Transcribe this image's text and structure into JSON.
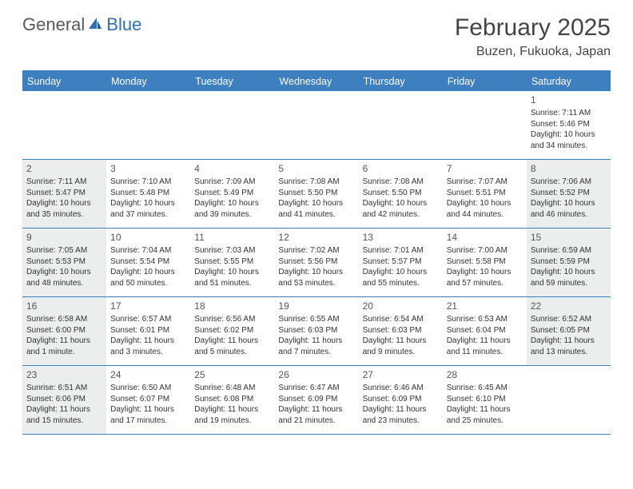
{
  "logo": {
    "part1": "General",
    "part2": "Blue"
  },
  "title": "February 2025",
  "location": "Buzen, Fukuoka, Japan",
  "colors": {
    "accent": "#3d7fbf",
    "shaded": "#eceded",
    "text": "#333333",
    "logo_gray": "#5a5a5a",
    "logo_blue": "#2f6fb0"
  },
  "day_names": [
    "Sunday",
    "Monday",
    "Tuesday",
    "Wednesday",
    "Thursday",
    "Friday",
    "Saturday"
  ],
  "weeks": [
    [
      {
        "blank": true
      },
      {
        "blank": true
      },
      {
        "blank": true
      },
      {
        "blank": true
      },
      {
        "blank": true
      },
      {
        "blank": true
      },
      {
        "day": "1",
        "sunrise": "Sunrise: 7:11 AM",
        "sunset": "Sunset: 5:46 PM",
        "daylight": "Daylight: 10 hours and 34 minutes."
      }
    ],
    [
      {
        "day": "2",
        "shaded": true,
        "sunrise": "Sunrise: 7:11 AM",
        "sunset": "Sunset: 5:47 PM",
        "daylight": "Daylight: 10 hours and 35 minutes."
      },
      {
        "day": "3",
        "sunrise": "Sunrise: 7:10 AM",
        "sunset": "Sunset: 5:48 PM",
        "daylight": "Daylight: 10 hours and 37 minutes."
      },
      {
        "day": "4",
        "sunrise": "Sunrise: 7:09 AM",
        "sunset": "Sunset: 5:49 PM",
        "daylight": "Daylight: 10 hours and 39 minutes."
      },
      {
        "day": "5",
        "sunrise": "Sunrise: 7:08 AM",
        "sunset": "Sunset: 5:50 PM",
        "daylight": "Daylight: 10 hours and 41 minutes."
      },
      {
        "day": "6",
        "sunrise": "Sunrise: 7:08 AM",
        "sunset": "Sunset: 5:50 PM",
        "daylight": "Daylight: 10 hours and 42 minutes."
      },
      {
        "day": "7",
        "sunrise": "Sunrise: 7:07 AM",
        "sunset": "Sunset: 5:51 PM",
        "daylight": "Daylight: 10 hours and 44 minutes."
      },
      {
        "day": "8",
        "shaded": true,
        "sunrise": "Sunrise: 7:06 AM",
        "sunset": "Sunset: 5:52 PM",
        "daylight": "Daylight: 10 hours and 46 minutes."
      }
    ],
    [
      {
        "day": "9",
        "shaded": true,
        "sunrise": "Sunrise: 7:05 AM",
        "sunset": "Sunset: 5:53 PM",
        "daylight": "Daylight: 10 hours and 48 minutes."
      },
      {
        "day": "10",
        "sunrise": "Sunrise: 7:04 AM",
        "sunset": "Sunset: 5:54 PM",
        "daylight": "Daylight: 10 hours and 50 minutes."
      },
      {
        "day": "11",
        "sunrise": "Sunrise: 7:03 AM",
        "sunset": "Sunset: 5:55 PM",
        "daylight": "Daylight: 10 hours and 51 minutes."
      },
      {
        "day": "12",
        "sunrise": "Sunrise: 7:02 AM",
        "sunset": "Sunset: 5:56 PM",
        "daylight": "Daylight: 10 hours and 53 minutes."
      },
      {
        "day": "13",
        "sunrise": "Sunrise: 7:01 AM",
        "sunset": "Sunset: 5:57 PM",
        "daylight": "Daylight: 10 hours and 55 minutes."
      },
      {
        "day": "14",
        "sunrise": "Sunrise: 7:00 AM",
        "sunset": "Sunset: 5:58 PM",
        "daylight": "Daylight: 10 hours and 57 minutes."
      },
      {
        "day": "15",
        "shaded": true,
        "sunrise": "Sunrise: 6:59 AM",
        "sunset": "Sunset: 5:59 PM",
        "daylight": "Daylight: 10 hours and 59 minutes."
      }
    ],
    [
      {
        "day": "16",
        "shaded": true,
        "sunrise": "Sunrise: 6:58 AM",
        "sunset": "Sunset: 6:00 PM",
        "daylight": "Daylight: 11 hours and 1 minute."
      },
      {
        "day": "17",
        "sunrise": "Sunrise: 6:57 AM",
        "sunset": "Sunset: 6:01 PM",
        "daylight": "Daylight: 11 hours and 3 minutes."
      },
      {
        "day": "18",
        "sunrise": "Sunrise: 6:56 AM",
        "sunset": "Sunset: 6:02 PM",
        "daylight": "Daylight: 11 hours and 5 minutes."
      },
      {
        "day": "19",
        "sunrise": "Sunrise: 6:55 AM",
        "sunset": "Sunset: 6:03 PM",
        "daylight": "Daylight: 11 hours and 7 minutes."
      },
      {
        "day": "20",
        "sunrise": "Sunrise: 6:54 AM",
        "sunset": "Sunset: 6:03 PM",
        "daylight": "Daylight: 11 hours and 9 minutes."
      },
      {
        "day": "21",
        "sunrise": "Sunrise: 6:53 AM",
        "sunset": "Sunset: 6:04 PM",
        "daylight": "Daylight: 11 hours and 11 minutes."
      },
      {
        "day": "22",
        "shaded": true,
        "sunrise": "Sunrise: 6:52 AM",
        "sunset": "Sunset: 6:05 PM",
        "daylight": "Daylight: 11 hours and 13 minutes."
      }
    ],
    [
      {
        "day": "23",
        "shaded": true,
        "sunrise": "Sunrise: 6:51 AM",
        "sunset": "Sunset: 6:06 PM",
        "daylight": "Daylight: 11 hours and 15 minutes."
      },
      {
        "day": "24",
        "sunrise": "Sunrise: 6:50 AM",
        "sunset": "Sunset: 6:07 PM",
        "daylight": "Daylight: 11 hours and 17 minutes."
      },
      {
        "day": "25",
        "sunrise": "Sunrise: 6:48 AM",
        "sunset": "Sunset: 6:08 PM",
        "daylight": "Daylight: 11 hours and 19 minutes."
      },
      {
        "day": "26",
        "sunrise": "Sunrise: 6:47 AM",
        "sunset": "Sunset: 6:09 PM",
        "daylight": "Daylight: 11 hours and 21 minutes."
      },
      {
        "day": "27",
        "sunrise": "Sunrise: 6:46 AM",
        "sunset": "Sunset: 6:09 PM",
        "daylight": "Daylight: 11 hours and 23 minutes."
      },
      {
        "day": "28",
        "sunrise": "Sunrise: 6:45 AM",
        "sunset": "Sunset: 6:10 PM",
        "daylight": "Daylight: 11 hours and 25 minutes."
      },
      {
        "blank": true
      }
    ]
  ]
}
